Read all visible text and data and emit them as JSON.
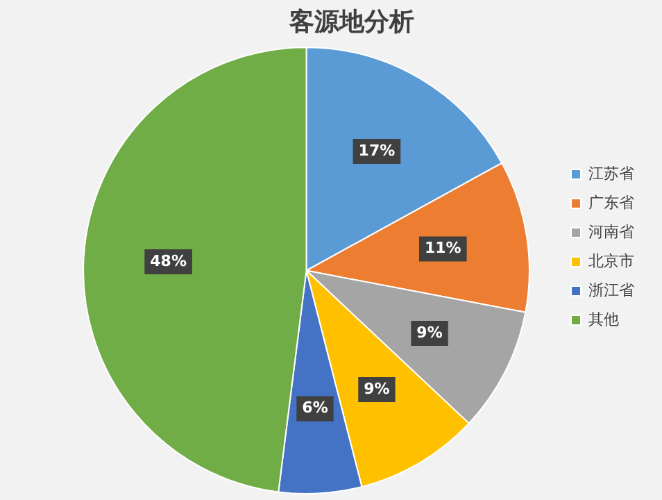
{
  "chart_data": {
    "type": "pie",
    "title": "客源地分析",
    "categories": [
      "江苏省",
      "广东省",
      "河南省",
      "北京市",
      "浙江省",
      "其他"
    ],
    "values": [
      17,
      11,
      9,
      9,
      6,
      48
    ],
    "value_labels": [
      "17%",
      "11%",
      "9%",
      "9%",
      "6%",
      "48%"
    ],
    "colors": [
      "#5b9bd5",
      "#ed7d31",
      "#a5a5a5",
      "#ffc000",
      "#4472c4",
      "#70ad47"
    ],
    "legend": "right"
  }
}
